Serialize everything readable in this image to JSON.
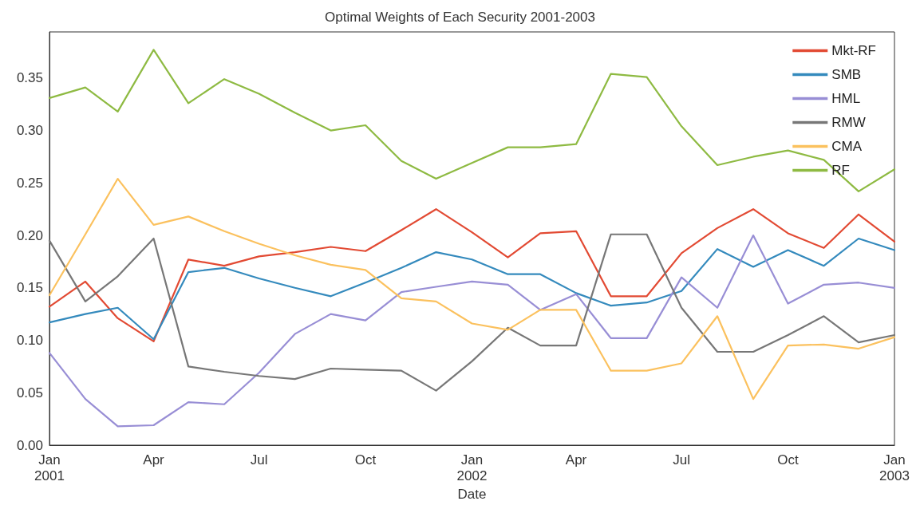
{
  "chart_data": {
    "type": "line",
    "title": "Optimal Weights of Each Security 2001-2003",
    "xlabel": "Date",
    "x": [
      "2001-01",
      "2001-02",
      "2001-03",
      "2001-04",
      "2001-05",
      "2001-06",
      "2001-07",
      "2001-08",
      "2001-09",
      "2001-10",
      "2001-11",
      "2001-12",
      "2002-01",
      "2002-02",
      "2002-03",
      "2002-04",
      "2002-05",
      "2002-06",
      "2002-07",
      "2002-08",
      "2002-09",
      "2002-10",
      "2002-11",
      "2002-12",
      "2003-01"
    ],
    "xlim": [
      "2001-01",
      "2003-01"
    ],
    "xticks": [
      {
        "value": "2001-01",
        "label": "Jan\n2001"
      },
      {
        "value": "2001-04",
        "label": "Apr"
      },
      {
        "value": "2001-07",
        "label": "Jul"
      },
      {
        "value": "2001-10",
        "label": "Oct"
      },
      {
        "value": "2002-01",
        "label": "Jan\n2002"
      },
      {
        "value": "2002-04",
        "label": "Apr"
      },
      {
        "value": "2002-07",
        "label": "Jul"
      },
      {
        "value": "2002-10",
        "label": "Oct"
      },
      {
        "value": "2003-01",
        "label": "Jan\n2003"
      }
    ],
    "ylim": [
      0,
      0.394
    ],
    "yticks": [
      {
        "value": 0,
        "label": "0.00"
      },
      {
        "value": 0.05,
        "label": "0.05"
      },
      {
        "value": 0.1,
        "label": "0.10"
      },
      {
        "value": 0.15,
        "label": "0.15"
      },
      {
        "value": 0.2,
        "label": "0.20"
      },
      {
        "value": 0.25,
        "label": "0.25"
      },
      {
        "value": 0.3,
        "label": "0.30"
      },
      {
        "value": 0.35,
        "label": "0.35"
      }
    ],
    "grid": false,
    "legend": "top right",
    "marker": "none",
    "line_style": "solid",
    "series": [
      {
        "name": "Mkt-RF",
        "color": "#e24a33",
        "values": [
          0.132,
          0.156,
          0.121,
          0.099,
          0.177,
          0.171,
          0.18,
          0.184,
          0.189,
          0.185,
          0.205,
          0.225,
          0.203,
          0.179,
          0.202,
          0.204,
          0.142,
          0.142,
          0.183,
          0.207,
          0.225,
          0.202,
          0.188,
          0.22,
          0.194
        ]
      },
      {
        "name": "SMB",
        "color": "#348abd",
        "values": [
          0.117,
          0.125,
          0.131,
          0.101,
          0.165,
          0.169,
          0.159,
          0.15,
          0.142,
          0.155,
          0.169,
          0.184,
          0.177,
          0.163,
          0.163,
          0.145,
          0.133,
          0.136,
          0.147,
          0.187,
          0.17,
          0.186,
          0.171,
          0.197,
          0.186
        ]
      },
      {
        "name": "HML",
        "color": "#988ed5",
        "values": [
          0.088,
          0.044,
          0.018,
          0.019,
          0.041,
          0.039,
          0.069,
          0.106,
          0.125,
          0.119,
          0.146,
          0.151,
          0.156,
          0.153,
          0.129,
          0.144,
          0.102,
          0.102,
          0.16,
          0.131,
          0.2,
          0.135,
          0.153,
          0.155,
          0.15
        ]
      },
      {
        "name": "RMW",
        "color": "#777777",
        "values": [
          0.195,
          0.137,
          0.161,
          0.197,
          0.075,
          0.07,
          0.066,
          0.063,
          0.073,
          0.072,
          0.071,
          0.052,
          0.08,
          0.112,
          0.095,
          0.095,
          0.201,
          0.201,
          0.131,
          0.089,
          0.089,
          0.105,
          0.123,
          0.098,
          0.105
        ]
      },
      {
        "name": "CMA",
        "color": "#fbc15e",
        "values": [
          0.143,
          0.201,
          0.254,
          0.21,
          0.218,
          0.204,
          0.192,
          0.181,
          0.172,
          0.167,
          0.14,
          0.137,
          0.116,
          0.11,
          0.129,
          0.129,
          0.071,
          0.071,
          0.078,
          0.123,
          0.044,
          0.095,
          0.096,
          0.092,
          0.103
        ]
      },
      {
        "name": "RF",
        "color": "#8eba42",
        "values": [
          0.331,
          0.341,
          0.318,
          0.377,
          0.326,
          0.349,
          0.335,
          0.317,
          0.3,
          0.305,
          0.271,
          0.254,
          0.269,
          0.284,
          0.284,
          0.287,
          0.354,
          0.351,
          0.304,
          0.267,
          0.275,
          0.281,
          0.272,
          0.242,
          0.263
        ]
      }
    ]
  }
}
